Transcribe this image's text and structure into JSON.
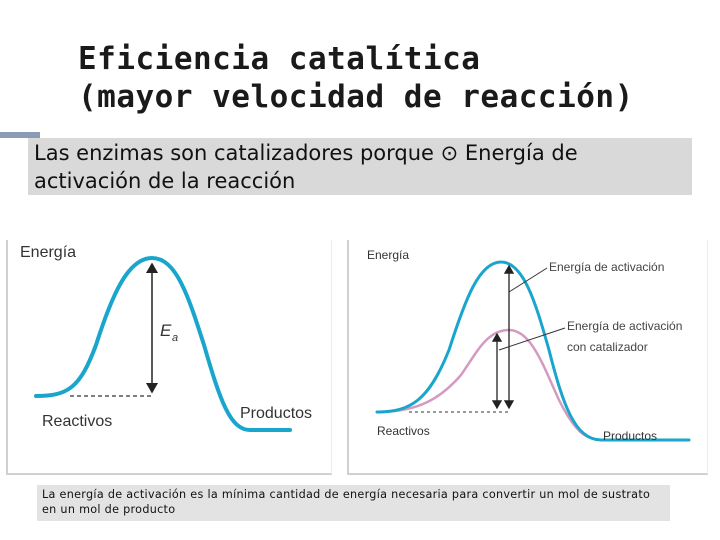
{
  "title": {
    "line1": "Eficiencia catalítica",
    "line2": "(mayor velocidad de reacción)"
  },
  "subtitle": {
    "text": "Las enzimas son catalizadores porque ⊙ Energía de activación de la reacción"
  },
  "left_diagram": {
    "y_axis_label": "Energía",
    "ea_label_main": "E",
    "ea_label_sub": "a",
    "reactants_label": "Reactivos",
    "products_label": "Productos"
  },
  "right_diagram": {
    "y_axis_label": "Energía",
    "activation_label": "Energía de activación",
    "catalyst_label_line1": "Energía de activación",
    "catalyst_label_line2": "con catalizador",
    "reactants_label": "Reactivos",
    "products_label": "Productos"
  },
  "caption": {
    "text": "La energía de activación es la mínima cantidad de energía necesaria para convertir un mol de sustrato en un mol de producto"
  },
  "colors": {
    "uncatalyzed_curve": "#1aa6cc",
    "catalyzed_curve": "#d49ac0"
  }
}
